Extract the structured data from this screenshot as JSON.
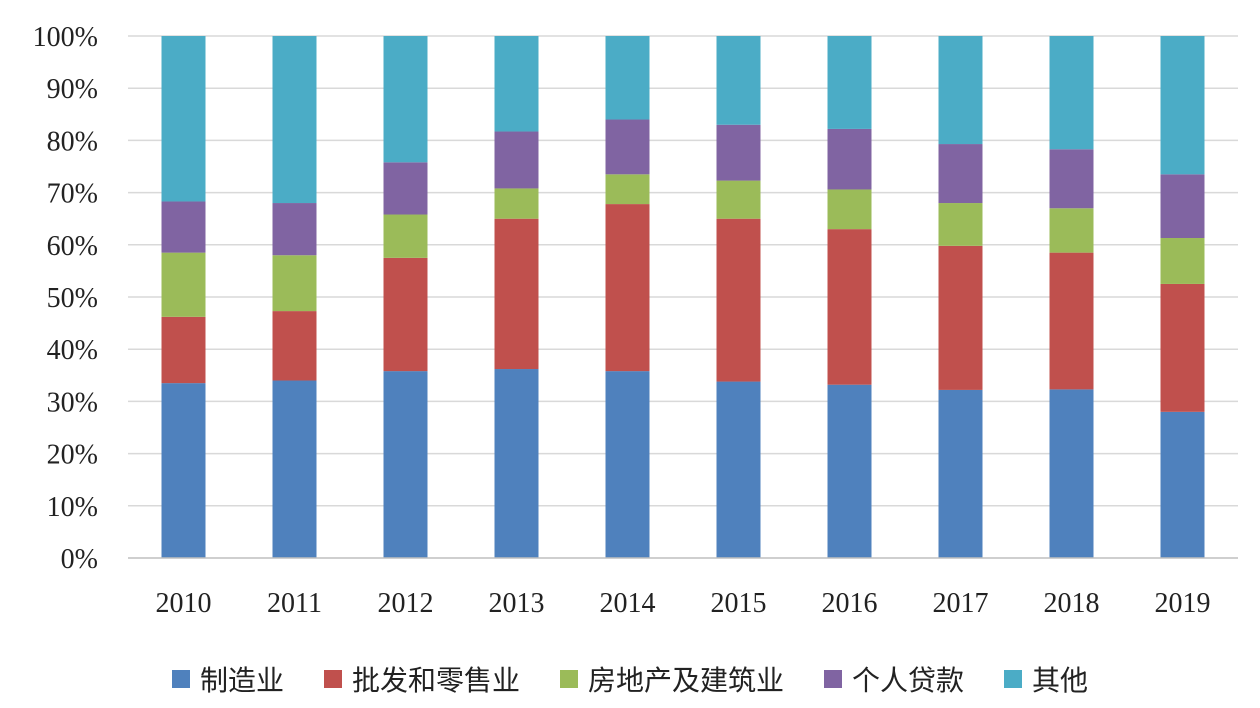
{
  "chart_data": {
    "type": "bar",
    "stacked": true,
    "percent_stacked": true,
    "title": "",
    "xlabel": "",
    "ylabel": "",
    "ylim": [
      0,
      100
    ],
    "yticks": [
      0,
      10,
      20,
      30,
      40,
      50,
      60,
      70,
      80,
      90,
      100
    ],
    "ytick_labels": [
      "0%",
      "10%",
      "20%",
      "30%",
      "40%",
      "50%",
      "60%",
      "70%",
      "80%",
      "90%",
      "100%"
    ],
    "grid": true,
    "legend_position": "bottom",
    "categories": [
      "2010",
      "2011",
      "2012",
      "2013",
      "2014",
      "2015",
      "2016",
      "2017",
      "2018",
      "2019"
    ],
    "series": [
      {
        "name": "制造业",
        "color": "#4f81bd",
        "values": [
          33.5,
          34.0,
          35.8,
          36.2,
          35.8,
          33.8,
          33.2,
          32.2,
          32.3,
          28.0
        ]
      },
      {
        "name": "批发和零售业",
        "color": "#c0504d",
        "values": [
          12.7,
          13.3,
          21.7,
          28.8,
          32.0,
          31.2,
          29.8,
          27.6,
          26.2,
          24.5
        ]
      },
      {
        "name": "房地产及建筑业",
        "color": "#9bbb59",
        "values": [
          12.3,
          10.7,
          8.3,
          5.8,
          5.7,
          7.3,
          7.6,
          8.2,
          8.5,
          8.8
        ]
      },
      {
        "name": "个人贷款",
        "color": "#8064a2",
        "values": [
          9.8,
          10.0,
          10.0,
          10.9,
          10.5,
          10.7,
          11.6,
          11.3,
          11.3,
          12.2
        ]
      },
      {
        "name": "其他",
        "color": "#4bacc6",
        "values": [
          31.7,
          32.0,
          24.2,
          18.3,
          16.0,
          17.0,
          17.8,
          20.7,
          21.7,
          26.5
        ]
      }
    ]
  }
}
